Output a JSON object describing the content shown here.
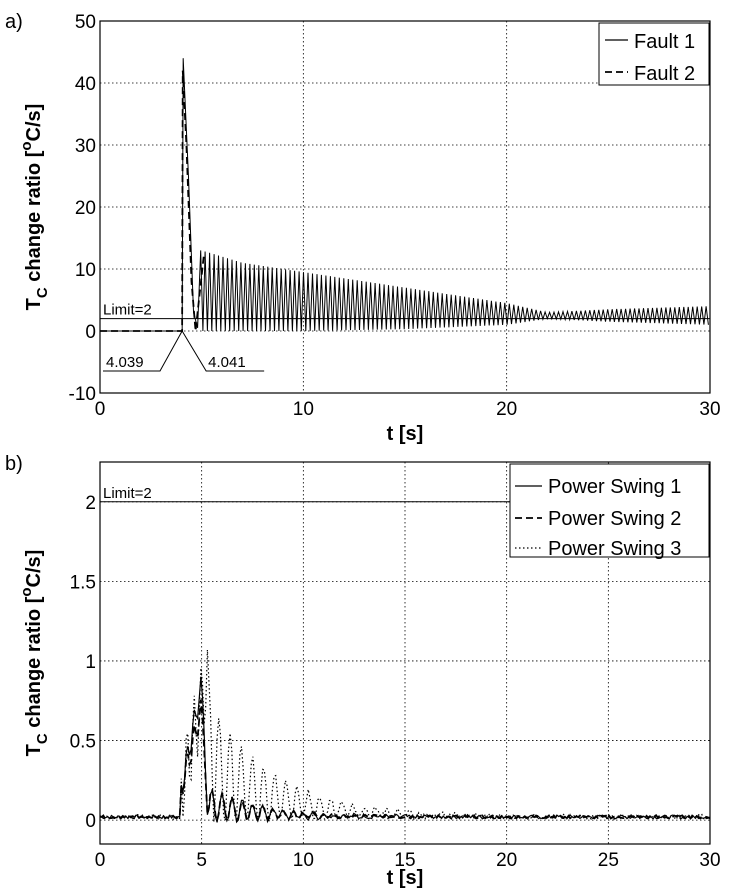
{
  "chart_data": [
    {
      "panel_label": "a)",
      "type": "line",
      "xlabel": "t [s]",
      "ylabel_main": "T",
      "ylabel_sub": "C",
      "ylabel_rest": " change ratio [",
      "ylabel_sup": "o",
      "ylabel_unit": "C/s]",
      "xlim": [
        0,
        30
      ],
      "ylim": [
        -10,
        50
      ],
      "xticks": [
        "0",
        "10",
        "20",
        "30"
      ],
      "yticks": [
        "-10",
        "0",
        "10",
        "20",
        "30",
        "40",
        "50"
      ],
      "grid": true,
      "legend_position": "top-right",
      "limit": {
        "label": "Limit=2",
        "value": 2
      },
      "annotations": [
        {
          "text": "4.039",
          "x": 4.039
        },
        {
          "text": "4.041",
          "x": 4.041
        }
      ],
      "series": [
        {
          "name": "Fault 1",
          "style": "solid",
          "color": "#000000",
          "start": 4.041,
          "peak": 44,
          "tail_upper": [
            [
              5,
              13
            ],
            [
              7,
              11
            ],
            [
              10,
              9.5
            ],
            [
              15,
              7
            ],
            [
              20,
              4.5
            ],
            [
              22,
              3
            ],
            [
              25,
              3.5
            ],
            [
              30,
              4
            ]
          ],
          "tail_lower": [
            [
              5,
              0
            ],
            [
              10,
              0
            ],
            [
              15,
              0.3
            ],
            [
              20,
              1
            ],
            [
              22,
              2
            ],
            [
              25,
              1.5
            ],
            [
              30,
              1
            ]
          ]
        },
        {
          "name": "Fault 2",
          "style": "dashed",
          "color": "#000000",
          "start": 4.039,
          "peak": 42
        }
      ]
    },
    {
      "panel_label": "b)",
      "type": "line",
      "xlabel": "t [s]",
      "ylabel_main": "T",
      "ylabel_sub": "C",
      "ylabel_rest": " change ratio [",
      "ylabel_sup": "o",
      "ylabel_unit": "C/s]",
      "xlim": [
        0,
        30
      ],
      "ylim": [
        -0.15,
        2.25
      ],
      "xticks": [
        "0",
        "5",
        "10",
        "15",
        "20",
        "25",
        "30"
      ],
      "yticks": [
        "0",
        "0.5",
        "1",
        "1.5",
        "2"
      ],
      "grid": true,
      "legend_position": "top-right",
      "limit": {
        "label": "Limit=2",
        "value": 2
      },
      "series": [
        {
          "name": "Power Swing 1",
          "style": "solid",
          "color": "#000000",
          "peak_t": 5.0,
          "peak": 0.85
        },
        {
          "name": "Power Swing 2",
          "style": "dashed",
          "color": "#000000",
          "peak_t": 5.0,
          "peak": 0.7
        },
        {
          "name": "Power Swing 3",
          "style": "dotted",
          "color": "#000000",
          "peak_t": 5.3,
          "peak": 0.91
        }
      ]
    }
  ]
}
